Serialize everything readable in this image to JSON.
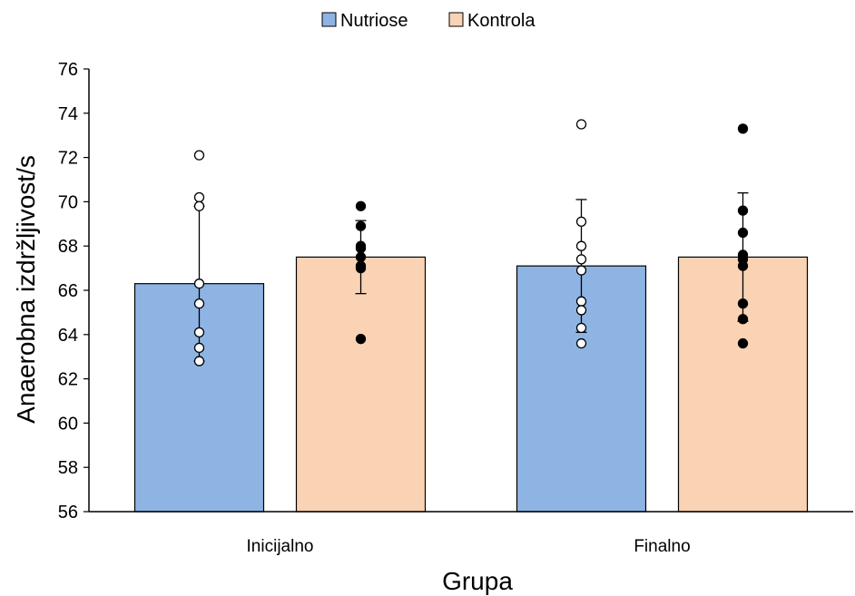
{
  "chart_data": {
    "type": "bar",
    "title": "",
    "xlabel": "Grupa",
    "ylabel": "Anaerobna izdržljivost/s",
    "categories": [
      "Inicijalno",
      "Finalno"
    ],
    "ylim": [
      56,
      76
    ],
    "yticks": [
      56,
      58,
      60,
      62,
      64,
      66,
      68,
      70,
      72,
      74,
      76
    ],
    "grid": false,
    "legend_position": "top-center",
    "series": [
      {
        "name": "Nutriose",
        "color": "#8EB4E3",
        "values": [
          66.3,
          67.1
        ],
        "error": [
          3.5,
          3.0
        ],
        "point_style": "open",
        "points": [
          [
            72.1,
            70.2,
            69.8,
            66.3,
            65.4,
            64.1,
            63.4,
            62.8
          ],
          [
            73.5,
            69.1,
            68.0,
            67.4,
            66.9,
            65.5,
            65.1,
            64.3,
            63.6
          ]
        ]
      },
      {
        "name": "Kontrola",
        "color": "#FAD3B4",
        "values": [
          67.5,
          67.5
        ],
        "error": [
          1.65,
          2.9
        ],
        "point_style": "filled",
        "points": [
          [
            69.8,
            68.9,
            68.0,
            67.9,
            67.5,
            67.1,
            67.0,
            63.8
          ],
          [
            73.3,
            69.6,
            68.6,
            67.6,
            67.4,
            67.1,
            65.4,
            64.7,
            63.6
          ]
        ]
      }
    ]
  }
}
